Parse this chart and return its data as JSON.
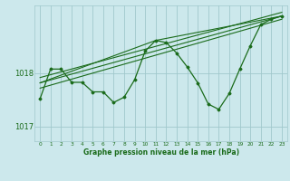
{
  "bg_color": "#cce8ec",
  "grid_color": "#a0c8cc",
  "line_color": "#1a6b1a",
  "xlabel": "Graphe pression niveau de la mer (hPa)",
  "xlim": [
    -0.5,
    23.5
  ],
  "ylim": [
    1016.72,
    1019.28
  ],
  "yticks": [
    1017,
    1018
  ],
  "xticks": [
    0,
    1,
    2,
    3,
    4,
    5,
    6,
    7,
    8,
    9,
    10,
    11,
    12,
    13,
    14,
    15,
    16,
    17,
    18,
    19,
    20,
    21,
    22,
    23
  ],
  "main_x": [
    0,
    1,
    2,
    3,
    4,
    5,
    6,
    7,
    8,
    9,
    10,
    11,
    12,
    13,
    14,
    15,
    16,
    17,
    18,
    19,
    20,
    21,
    22,
    23
  ],
  "main_y": [
    1017.52,
    1018.08,
    1018.08,
    1017.83,
    1017.83,
    1017.65,
    1017.65,
    1017.45,
    1017.55,
    1017.88,
    1018.42,
    1018.62,
    1018.58,
    1018.38,
    1018.12,
    1017.82,
    1017.42,
    1017.32,
    1017.62,
    1018.08,
    1018.52,
    1018.92,
    1019.02,
    1019.08
  ],
  "line1_x": [
    0,
    23
  ],
  "line1_y": [
    1017.82,
    1019.08
  ],
  "line2_x": [
    0,
    23
  ],
  "line2_y": [
    1017.72,
    1019.02
  ],
  "line3_x": [
    0,
    23
  ],
  "line3_y": [
    1017.92,
    1019.15
  ],
  "line4_x": [
    0,
    11,
    23
  ],
  "line4_y": [
    1017.82,
    1018.62,
    1019.08
  ]
}
